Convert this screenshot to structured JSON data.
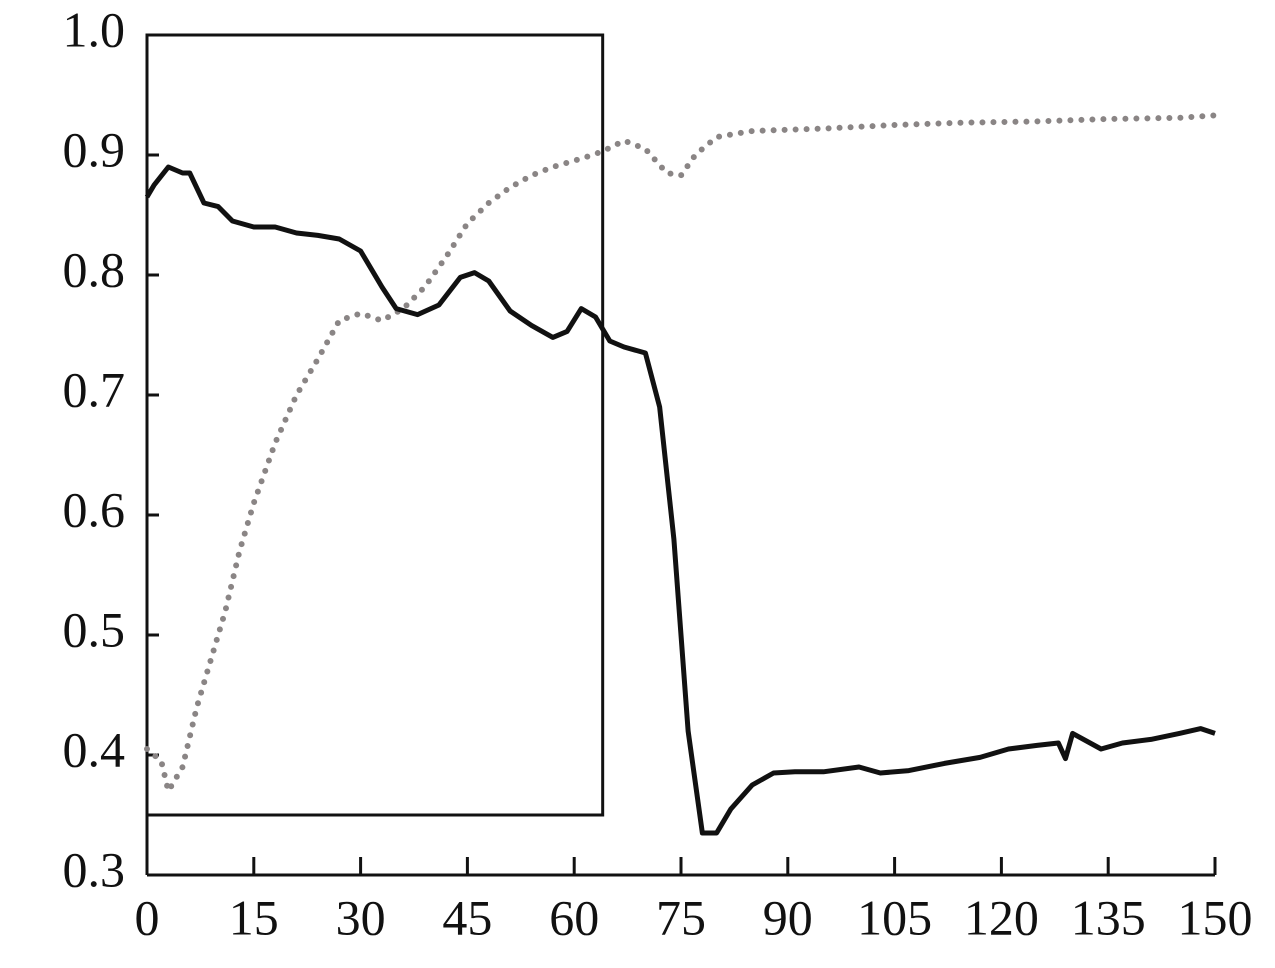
{
  "chart_data": {
    "type": "line",
    "xlim": [
      0,
      150
    ],
    "xticks": [
      0,
      15,
      30,
      45,
      60,
      75,
      90,
      105,
      120,
      135,
      150
    ],
    "ylim": [
      0.3,
      1.0
    ],
    "yticks": [
      0.3,
      0.4,
      0.5,
      0.6,
      0.7,
      0.8,
      0.9,
      {
        "value": 1,
        "label": "1.0"
      }
    ],
    "highlight_box": {
      "xlim": [
        0,
        64
      ],
      "ylim": [
        0.35,
        1.0
      ]
    },
    "series": [
      {
        "color": "#111111",
        "style": "solid",
        "x": [
          0,
          1,
          3,
          5,
          6,
          8,
          10,
          12,
          15,
          18,
          21,
          24,
          27,
          30,
          33,
          35,
          38,
          41,
          44,
          46,
          48,
          51,
          54,
          57,
          59,
          61,
          63,
          65,
          67,
          70,
          72,
          74,
          76,
          78,
          80,
          82,
          85,
          88,
          91,
          95,
          100,
          103,
          107,
          112,
          117,
          121,
          125,
          128,
          129,
          130,
          134,
          137,
          141,
          145,
          148,
          150
        ],
        "values": [
          0.865,
          0.875,
          0.89,
          0.885,
          0.885,
          0.86,
          0.857,
          0.845,
          0.84,
          0.84,
          0.835,
          0.833,
          0.83,
          0.82,
          0.79,
          0.772,
          0.767,
          0.775,
          0.798,
          0.802,
          0.795,
          0.77,
          0.758,
          0.748,
          0.753,
          0.772,
          0.765,
          0.745,
          0.74,
          0.735,
          0.69,
          0.58,
          0.42,
          0.335,
          0.335,
          0.355,
          0.375,
          0.385,
          0.386,
          0.386,
          0.39,
          0.385,
          0.387,
          0.393,
          0.398,
          0.405,
          0.408,
          0.41,
          0.397,
          0.418,
          0.405,
          0.41,
          0.413,
          0.418,
          0.422,
          0.418
        ]
      },
      {
        "color": "#8a8585",
        "style": "dotted",
        "x": [
          0,
          2,
          3,
          5,
          7,
          9,
          11,
          13,
          15,
          18,
          21,
          24,
          27,
          30,
          33,
          36,
          39,
          42,
          45,
          48,
          51,
          54,
          57,
          61,
          64,
          67,
          70,
          73,
          75,
          77,
          80,
          85,
          95,
          105,
          115,
          125,
          135,
          145,
          150
        ],
        "values": [
          0.405,
          0.395,
          0.37,
          0.39,
          0.44,
          0.48,
          0.52,
          0.57,
          0.61,
          0.66,
          0.7,
          0.73,
          0.762,
          0.768,
          0.762,
          0.772,
          0.79,
          0.815,
          0.843,
          0.86,
          0.873,
          0.883,
          0.89,
          0.897,
          0.903,
          0.912,
          0.905,
          0.885,
          0.883,
          0.9,
          0.915,
          0.92,
          0.922,
          0.925,
          0.927,
          0.928,
          0.93,
          0.931,
          0.933
        ]
      }
    ]
  }
}
